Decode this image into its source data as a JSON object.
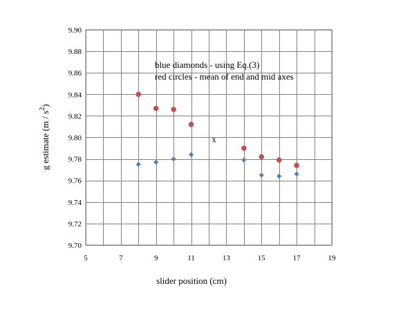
{
  "chart_data": {
    "type": "scatter",
    "title": "",
    "xlabel": "slider position  (cm)",
    "ylabel_main": "g estimate  (m / s",
    "ylabel_sup": "2",
    "ylabel_end": ")",
    "xlim": [
      5,
      19
    ],
    "ylim": [
      9.7,
      9.9
    ],
    "xticks": [
      5,
      7,
      9,
      11,
      13,
      15,
      17,
      19
    ],
    "xgrid_step": 1,
    "yticks": [
      9.7,
      9.72,
      9.74,
      9.76,
      9.78,
      9.8,
      9.82,
      9.84,
      9.86,
      9.88,
      9.9
    ],
    "ytick_decimals": 2,
    "grid": true,
    "grid_color": "#808080",
    "legend": "none",
    "annotations": [
      {
        "text": "blue diamonds - using Eq.(3)"
      },
      {
        "text": "red circles - mean of end and mid axes"
      }
    ],
    "marker_note": {
      "text": "x",
      "x": 12.3,
      "y": 9.798
    },
    "series": [
      {
        "color": "#4f81bd",
        "marker": "diamond",
        "x": [
          8,
          9,
          10,
          11,
          14,
          15,
          16,
          17
        ],
        "y": [
          9.775,
          9.777,
          9.78,
          9.784,
          9.779,
          9.765,
          9.764,
          9.766
        ]
      },
      {
        "color": "#c0504d",
        "marker": "circle",
        "x": [
          8,
          9,
          10,
          11,
          14,
          15,
          16,
          17
        ],
        "y": [
          9.84,
          9.827,
          9.826,
          9.812,
          9.79,
          9.782,
          9.779,
          9.774
        ]
      }
    ]
  }
}
